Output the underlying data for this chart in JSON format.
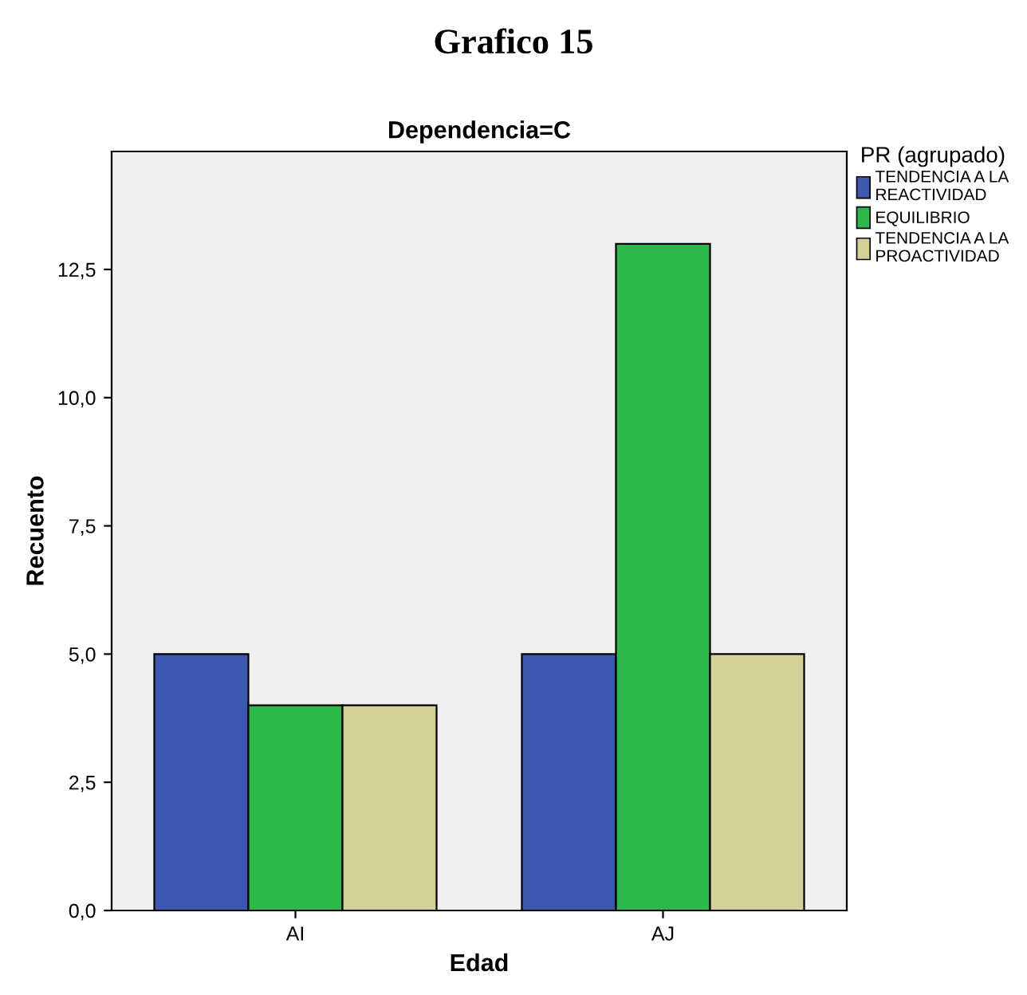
{
  "chart_data": {
    "type": "bar",
    "title": "Grafico 15",
    "subtitle": "Dependencia=C",
    "xlabel": "Edad",
    "ylabel": "Recuento",
    "legend_title": "PR (agrupado)",
    "categories": [
      "AI",
      "AJ"
    ],
    "series": [
      {
        "name": "TENDENCIA A LA\nREACTIVIDAD",
        "color": "#3c58b0",
        "values": [
          5,
          5
        ]
      },
      {
        "name": "EQUILIBRIO",
        "color": "#2db84a",
        "values": [
          4,
          13
        ]
      },
      {
        "name": "TENDENCIA A LA\nPROACTIVIDAD",
        "color": "#d5cf98",
        "values": [
          4,
          5
        ]
      }
    ],
    "ylim": [
      0,
      14.8
    ],
    "yticks": [
      {
        "value": 0,
        "label": "0,0"
      },
      {
        "value": 2.5,
        "label": "2,5"
      },
      {
        "value": 5,
        "label": "5,0"
      },
      {
        "value": 7.5,
        "label": "7,5"
      },
      {
        "value": 10,
        "label": "10,0"
      },
      {
        "value": 12.5,
        "label": "12,5"
      }
    ],
    "legend": "top right",
    "grid": false
  }
}
